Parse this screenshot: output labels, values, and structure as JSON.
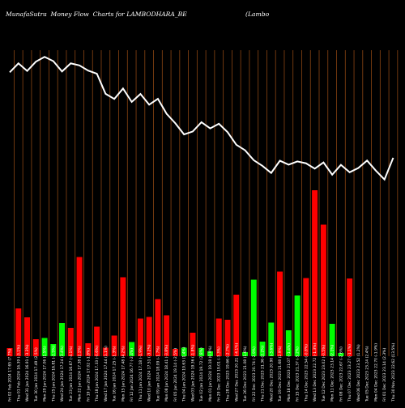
{
  "title": "MunafaSutra  Money Flow  Charts for LAMBODHARA_BE",
  "title_right": "(Lambo",
  "colors": {
    "background": "#000000",
    "grid": "#8b4513",
    "line": "#ffffff",
    "up": "#00ff00",
    "down": "#ff0000",
    "text": "#ffffff"
  },
  "chart_data": {
    "type": "bar+line",
    "grid": true,
    "categories": [
      "Fri 02 Feb 2024",
      "Thu 01 Feb 2024",
      "Wed 31 Jan 2024",
      "Tue 30 Jan 2024",
      "Mon 29 Jan 2024",
      "Thu 25 Jan 2024",
      "Wed 24 Jan 2024",
      "Tue 23 Jan 2024",
      "Mon 22 Jan 2024",
      "Fri 19 Jan 2024",
      "Thu 18 Jan 2024",
      "Wed 17 Jan 2024",
      "Tue 16 Jan 2024",
      "Mon 15 Jan 2024",
      "Fri 12 Jan 2024",
      "Thu 11 Jan 2024",
      "Wed 10 Jan 2024",
      "Tue 09 Jan 2024",
      "Mon 08 Jan 2024",
      "Fri 05 Jan 2024",
      "Thu 04 Jan 2024",
      "Wed 03 Jan 2024",
      "Tue 02 Jan 2024",
      "Mon 01 Jan 2024",
      "Fri 29 Dec 2023",
      "Thu 28 Dec 2023",
      "Wed 27 Dec 2023",
      "Tue 26 Dec 2023",
      "Fri 22 Dec 2023",
      "Thu 21 Dec 2023",
      "Wed 20 Dec 2023",
      "Tue 19 Dec 2023",
      "Mon 18 Dec 2023",
      "Fri 15 Dec 2023",
      "Thu 14 Dec 2023",
      "Wed 13 Dec 2023",
      "Tue 12 Dec 2023",
      "Mon 11 Dec 2023",
      "Fri 08 Dec 2023",
      "Thu 07 Dec 2023",
      "Wed 06 Dec 2023",
      "Tue 05 Dec 2023",
      "Mon 04 Dec 2023",
      "Fri 01 Dec 2023",
      "Thu 30 Nov 2023"
    ],
    "xtick_labels": [
      "Fri 02 Feb 2024 17.65 (7.7%)",
      "Thu 01 Feb 2024 16.39 (-3.1%)",
      "Wed 31 Jan 2024 16.91 (-3.3%)",
      "Tue 30 Jan 2024 17.49 (2.5%)",
      "Mon 29 Jan 2024 17.06 (1.5%)",
      "Thu 25 Jan 2024 16.81 (-2.5%)",
      "Wed 24 Jan 2024 17.24 (3.4%)",
      "Tue 23 Jan 2024 16.67 (-4.1%)",
      "Mon 22 Jan 2024 17.38 (2.1%)",
      "Fri 19 Jan 2024 17.02 (-1.8%)",
      "Thu 18 Jan 2024 17.33 (-0.6%)",
      "Wed 17 Jan 2024 17.44 (1.1%)",
      "Tue 16 Jan 2024 17.25 (-1.3%)",
      "Mon 15 Jan 2024 17.48 (4.2%)",
      "Fri 12 Jan 2024 16.77 (-2.4%)",
      "Thu 11 Jan 2024 17.18 (-1.9%)",
      "Wed 10 Jan 2024 17.51 (-3.2%)",
      "Tue 09 Jan 2024 18.09 (-1.7%)",
      "Mon 08 Jan 2024 18.41 (-3.8%)",
      "Fri 05 Jan 2024 19.14 (-2.5%)",
      "Thu 04 Jan 2024 19.63 (1.4%)",
      "Wed 03 Jan 2024 19.36 (-1.8%)",
      "Tue 02 Jan 2024 19.72 (2.8%)",
      "Mon 01 Jan 2024 19.18 (0.9%)",
      "Fri 29 Dec 2023 19.01 (-3.3%)",
      "Thu 28 Dec 2023 19.66 (-2.7%)",
      "Wed 27 Dec 2023 20.21 (-4.1%)",
      "Tue 26 Dec 2023 21.08 (1.6%)",
      "Fri 22 Dec 2023 20.74 (-2.9%)",
      "Thu 21 Dec 2023 21.36 (2.2%)",
      "Wed 20 Dec 2023 20.90 (-3.6%)",
      "Tue 19 Dec 2023 21.68 (2.9%)",
      "Mon 18 Dec 2023 21.07 (-1.4%)",
      "Fri 15 Dec 2023 21.37 (-5.2%)",
      "Thu 14 Dec 2023 22.54 (-0.8%)",
      "Wed 13 Dec 2023 22.72 (-1.3%)",
      "Tue 12 Dec 2023 23.02 (-0.5%)",
      "Mon 11 Dec 2023 23.14 (2.1%)",
      "Fri 08 Dec 2023 22.67 (-2.6%)",
      "Thu 07 Dec 2023 23.27 (-1.1%)",
      "Wed 06 Dec 2023 23.52 (1.2%)",
      "Tue 05 Dec 2023 23.24 (2.4%)",
      "Mon 04 Dec 2023 22.70 (-1.9%)",
      "Fri 01 Dec 2023 23.14 (2.3%)",
      "Thu 30 Nov 2023 22.62 (13.5%)"
    ],
    "price": [
      17.65,
      16.39,
      16.91,
      17.49,
      17.06,
      16.81,
      17.24,
      16.67,
      17.38,
      17.02,
      17.33,
      17.44,
      17.25,
      17.48,
      16.77,
      17.18,
      17.51,
      18.09,
      18.41,
      19.14,
      19.63,
      19.36,
      19.72,
      19.18,
      19.01,
      19.66,
      20.21,
      21.08,
      20.74,
      21.36,
      20.9,
      21.68,
      21.07,
      21.37,
      22.54,
      22.72,
      23.02,
      23.14,
      22.67,
      23.27,
      23.52,
      23.24,
      22.7,
      23.14,
      22.62
    ],
    "money_flow": [
      {
        "v": 2.0,
        "c": "down"
      },
      {
        "v": 11.8,
        "c": "down"
      },
      {
        "v": 9.6,
        "c": "down"
      },
      {
        "v": 4.2,
        "c": "down"
      },
      {
        "v": 4.5,
        "c": "up"
      },
      {
        "v": 3.0,
        "c": "up"
      },
      {
        "v": 8.2,
        "c": "up"
      },
      {
        "v": 7.0,
        "c": "down"
      },
      {
        "v": 24.5,
        "c": "down"
      },
      {
        "v": 3.2,
        "c": "down"
      },
      {
        "v": 7.3,
        "c": "down"
      },
      {
        "v": 2.1,
        "c": "down"
      },
      {
        "v": 5.1,
        "c": "down"
      },
      {
        "v": 19.5,
        "c": "down"
      },
      {
        "v": 3.5,
        "c": "up"
      },
      {
        "v": 9.3,
        "c": "down"
      },
      {
        "v": 9.7,
        "c": "down"
      },
      {
        "v": 14.1,
        "c": "down"
      },
      {
        "v": 10.1,
        "c": "down"
      },
      {
        "v": 1.8,
        "c": "down"
      },
      {
        "v": 2.1,
        "c": "up"
      },
      {
        "v": 5.8,
        "c": "down"
      },
      {
        "v": 2.0,
        "c": "up"
      },
      {
        "v": 1.2,
        "c": "up"
      },
      {
        "v": 9.3,
        "c": "down"
      },
      {
        "v": 9.0,
        "c": "down"
      },
      {
        "v": 15.2,
        "c": "down"
      },
      {
        "v": 1.0,
        "c": "up"
      },
      {
        "v": 18.9,
        "c": "up"
      },
      {
        "v": 3.6,
        "c": "up"
      },
      {
        "v": 8.3,
        "c": "up"
      },
      {
        "v": 20.9,
        "c": "down"
      },
      {
        "v": 6.4,
        "c": "up"
      },
      {
        "v": 15.0,
        "c": "up"
      },
      {
        "v": 19.3,
        "c": "down"
      },
      {
        "v": 41.0,
        "c": "down"
      },
      {
        "v": 32.5,
        "c": "down"
      },
      {
        "v": 8.0,
        "c": "up"
      },
      {
        "v": 0.8,
        "c": "up"
      },
      {
        "v": 19.2,
        "c": "down"
      },
      {
        "v": 0,
        "c": "none"
      },
      {
        "v": 0,
        "c": "none"
      },
      {
        "v": 0,
        "c": "none"
      },
      {
        "v": 0,
        "c": "none"
      },
      {
        "v": 0,
        "c": "none"
      }
    ],
    "price_range": [
      16.0,
      24.0
    ],
    "flow_range": [
      0,
      50
    ]
  }
}
